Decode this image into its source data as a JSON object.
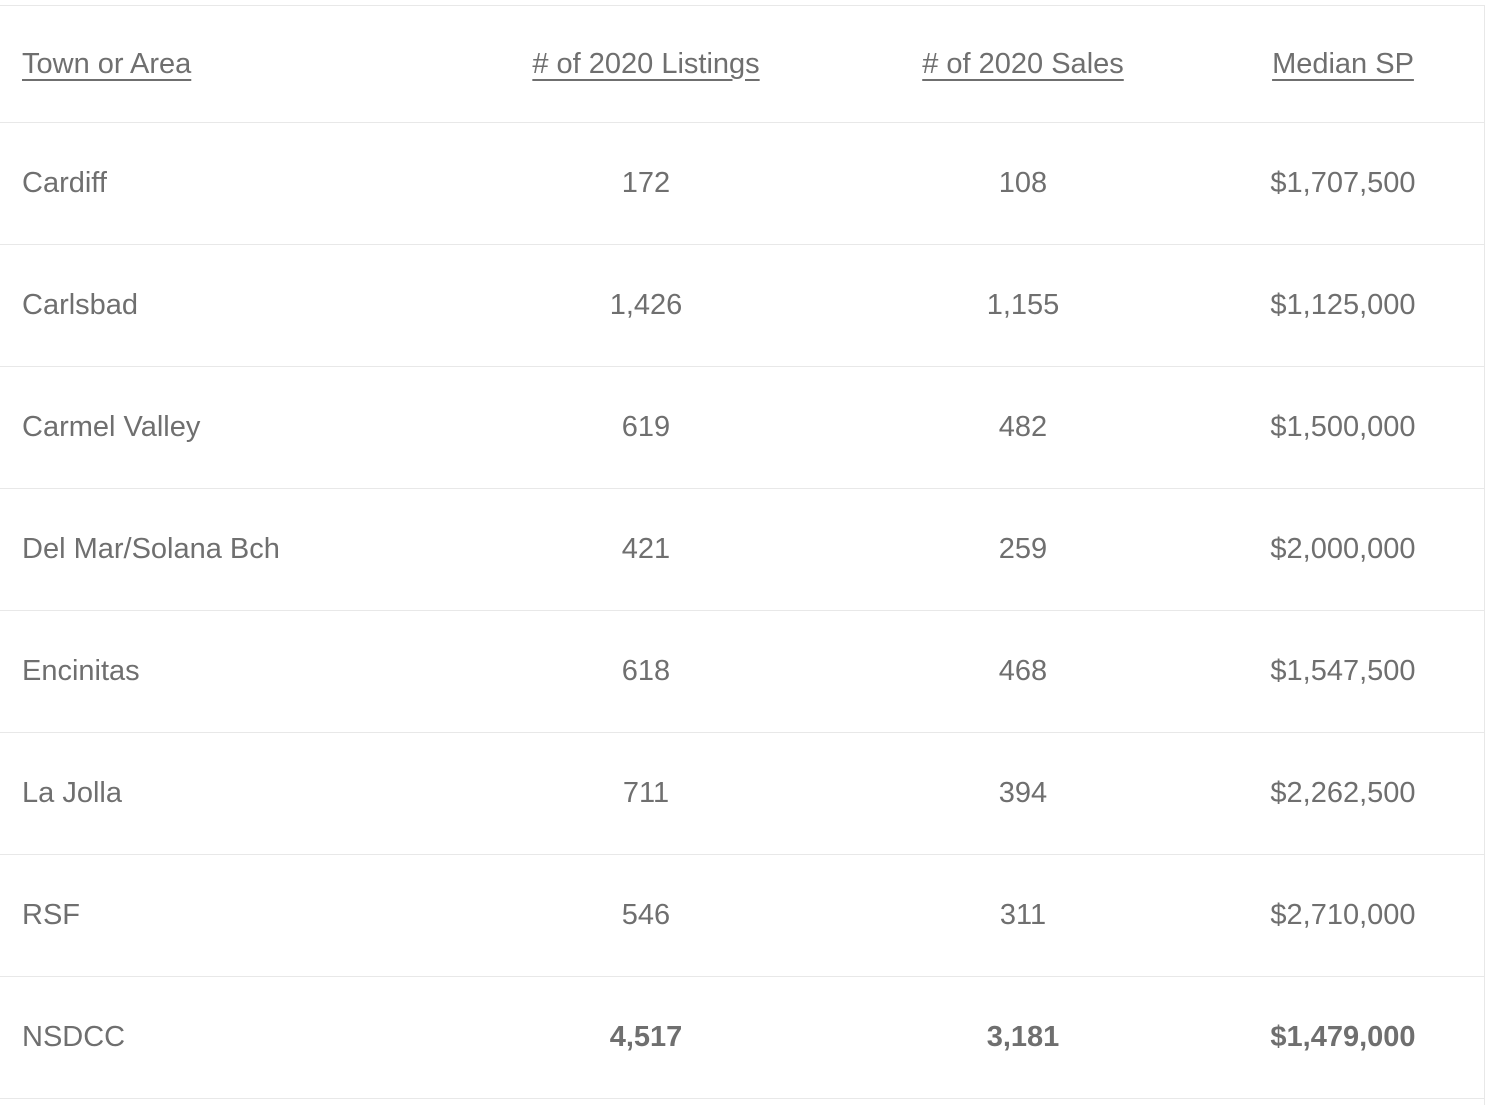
{
  "colors": {
    "text": "#6f6f6f",
    "border": "#e8e8e8",
    "background": "#ffffff"
  },
  "chart_data": {
    "type": "table",
    "columns": [
      "Town or Area",
      "# of 2020 Listings",
      "# of 2020 Sales",
      "Median SP"
    ],
    "rows": [
      {
        "cells": [
          "Cardiff",
          "172",
          "108",
          "$1,707,500"
        ],
        "emphasis": false
      },
      {
        "cells": [
          "Carlsbad",
          "1,426",
          "1,155",
          "$1,125,000"
        ],
        "emphasis": false
      },
      {
        "cells": [
          "Carmel Valley",
          "619",
          "482",
          "$1,500,000"
        ],
        "emphasis": false
      },
      {
        "cells": [
          "Del Mar/Solana Bch",
          "421",
          "259",
          "$2,000,000"
        ],
        "emphasis": false
      },
      {
        "cells": [
          "Encinitas",
          "618",
          "468",
          "$1,547,500"
        ],
        "emphasis": false
      },
      {
        "cells": [
          "La Jolla",
          "711",
          "394",
          "$2,262,500"
        ],
        "emphasis": false
      },
      {
        "cells": [
          "RSF",
          "546",
          "311",
          "$2,710,000"
        ],
        "emphasis": false
      },
      {
        "cells": [
          "NSDCC",
          "4,517",
          "3,181",
          "$1,479,000"
        ],
        "emphasis": true
      }
    ]
  }
}
